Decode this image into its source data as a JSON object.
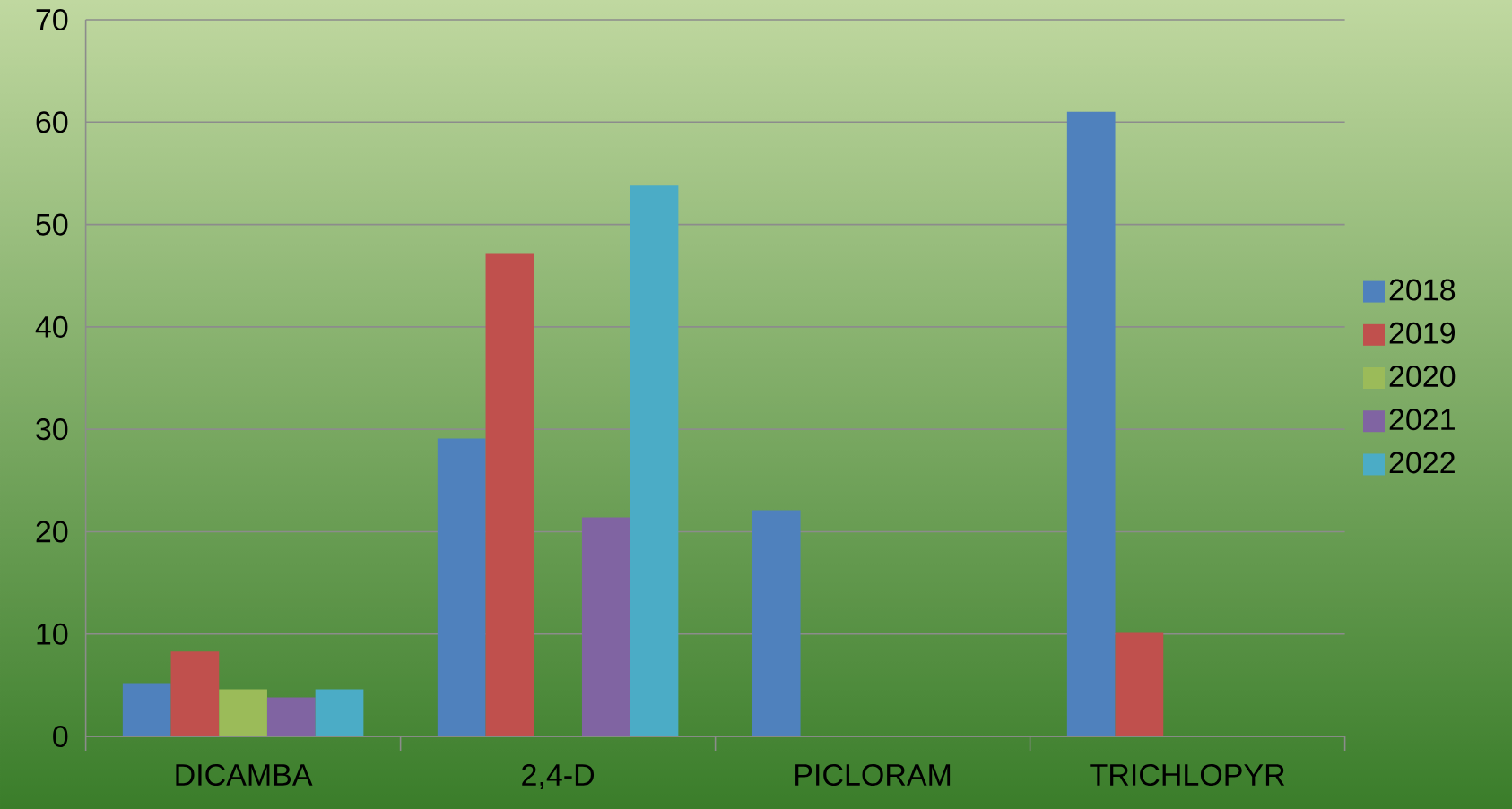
{
  "chart_data": {
    "type": "bar",
    "categories": [
      "DICAMBA",
      "2,4-D",
      "PICLORAM",
      "TRICHLOPYR"
    ],
    "series": [
      {
        "name": "2018",
        "color": "#4f81bd",
        "values": [
          5.2,
          29.1,
          22.1,
          61.0
        ]
      },
      {
        "name": "2019",
        "color": "#c0504d",
        "values": [
          8.3,
          47.2,
          null,
          10.2
        ]
      },
      {
        "name": "2020",
        "color": "#9bbb59",
        "values": [
          4.6,
          null,
          null,
          null
        ]
      },
      {
        "name": "2021",
        "color": "#8064a2",
        "values": [
          3.8,
          21.4,
          null,
          null
        ]
      },
      {
        "name": "2022",
        "color": "#4bacc6",
        "values": [
          4.6,
          53.8,
          null,
          null
        ]
      }
    ],
    "ylim": [
      0,
      70
    ],
    "yticks": [
      0,
      10,
      20,
      30,
      40,
      50,
      60,
      70
    ],
    "grid": "y",
    "legend": "right"
  }
}
